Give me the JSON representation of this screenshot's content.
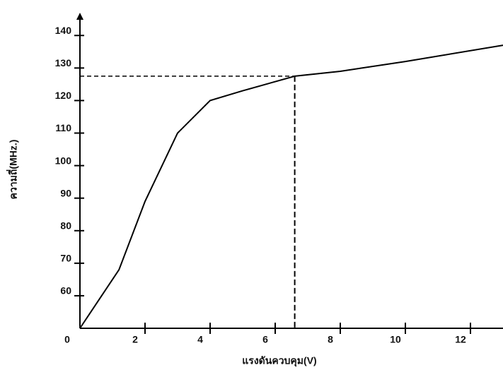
{
  "chart_data": {
    "type": "line",
    "x_label": "แรงดันควบคุม(V)",
    "y_label": "ความถี่(MHz.)",
    "xlim": [
      0,
      13
    ],
    "xticks": [
      0,
      2,
      4,
      6,
      8,
      10,
      12
    ],
    "ylim": [
      50,
      147
    ],
    "yticks": [
      60,
      70,
      80,
      90,
      100,
      110,
      120,
      130,
      140
    ],
    "series": [
      {
        "color": "#000000",
        "x": [
          0,
          1.2,
          2,
          3,
          4,
          5,
          6.6,
          8,
          10,
          13
        ],
        "values": [
          50,
          68,
          89,
          110,
          120,
          123,
          127.5,
          129,
          132,
          137
        ]
      }
    ],
    "reference_point": {
      "x": 6.6,
      "y": 127.5
    }
  }
}
